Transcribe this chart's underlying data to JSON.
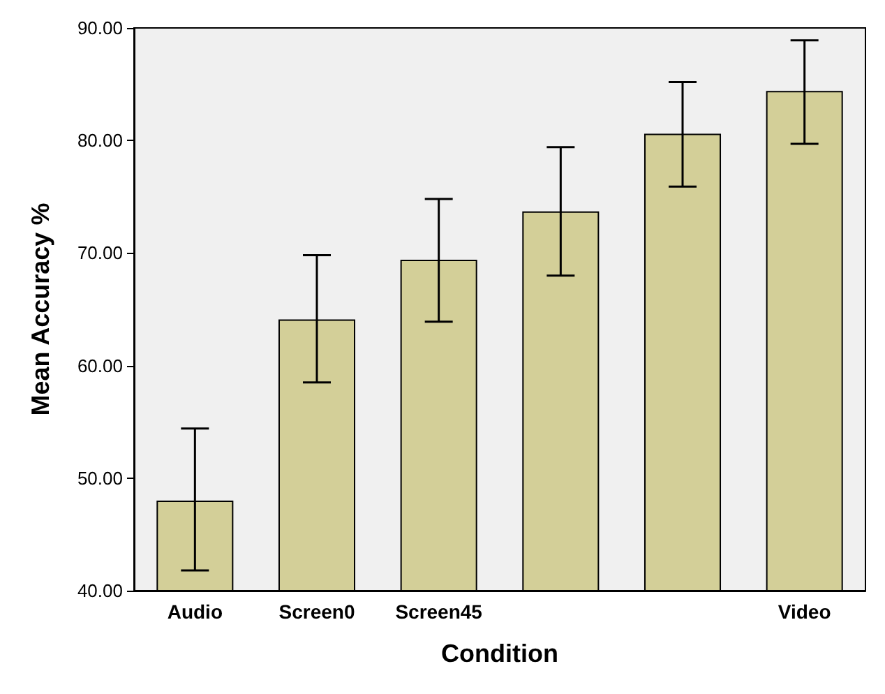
{
  "chart_data": {
    "type": "bar",
    "xlabel": "Condition",
    "ylabel": "Mean Accuracy %",
    "categories": [
      "Audio",
      "Screen0",
      "Screen45",
      null,
      null,
      "Video"
    ],
    "values": [
      48.0,
      64.1,
      69.4,
      73.7,
      80.6,
      84.4
    ],
    "errors": [
      [
        41.8,
        54.4
      ],
      [
        58.5,
        69.8
      ],
      [
        63.9,
        74.8
      ],
      [
        68.0,
        79.4
      ],
      [
        75.9,
        85.2
      ],
      [
        79.7,
        88.9
      ]
    ],
    "color": "#d3cf98",
    "ylim": [
      40,
      90
    ],
    "yticks": [
      {
        "value": 40,
        "label": "40.00"
      },
      {
        "value": 50,
        "label": "50.00"
      },
      {
        "value": 60,
        "label": "60.00"
      },
      {
        "value": 70,
        "label": "70.00"
      },
      {
        "value": 80,
        "label": "80.00"
      },
      {
        "value": 90,
        "label": "90.00"
      }
    ],
    "grid": false
  }
}
